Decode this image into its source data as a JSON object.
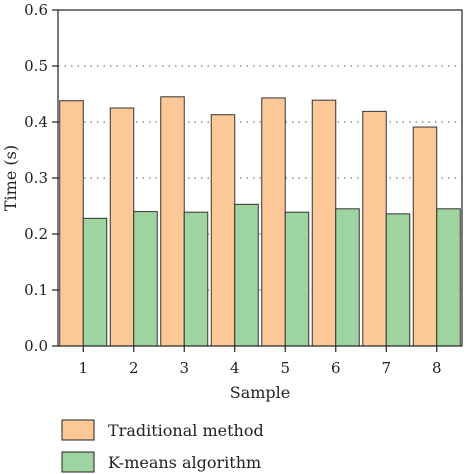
{
  "chart_data": {
    "type": "bar",
    "xlabel": "Sample",
    "ylabel": "Time (s)",
    "ylim": [
      0,
      0.6
    ],
    "yticks": [
      "0.0",
      "0.1",
      "0.2",
      "0.3",
      "0.4",
      "0.5",
      "0.6"
    ],
    "categories": [
      "1",
      "2",
      "3",
      "4",
      "5",
      "6",
      "7",
      "8"
    ],
    "grid": "horizontal dotted",
    "legend_position": "bottom",
    "series": [
      {
        "name": "Traditional method",
        "color": "#FDC897",
        "values": [
          0.438,
          0.425,
          0.445,
          0.413,
          0.443,
          0.439,
          0.419,
          0.391
        ]
      },
      {
        "name": "K-means algorithm",
        "color": "#9DD49F",
        "values": [
          0.228,
          0.24,
          0.239,
          0.253,
          0.239,
          0.245,
          0.236,
          0.245
        ]
      }
    ]
  }
}
